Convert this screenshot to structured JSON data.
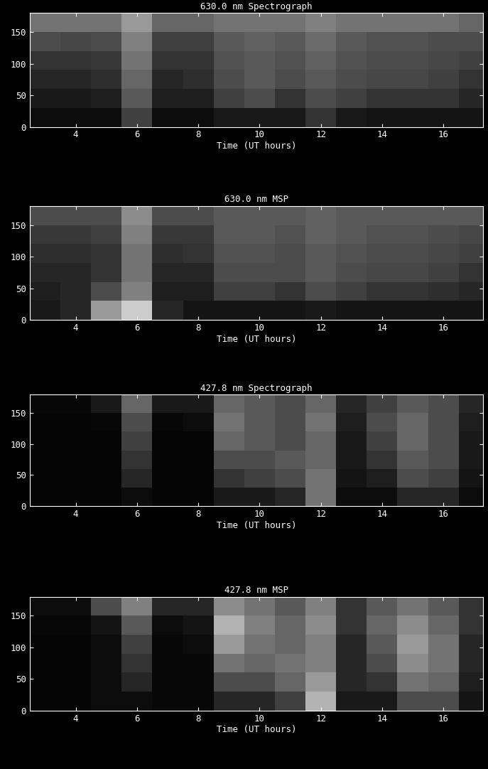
{
  "chart_data": [
    {
      "type": "heatmap",
      "title": "630.0 nm Spectrograph",
      "x_label": "Time (UT hours)",
      "color": "gray",
      "color_range": [
        0,
        1
      ],
      "x_bins": [
        2.5,
        3.5,
        4.5,
        5.5,
        6.5,
        7.5,
        8.5,
        9.5,
        10.5,
        11.5,
        12.5,
        13.5,
        14.5,
        15.5,
        16.5,
        17.5
      ],
      "y_bins": [
        0,
        30,
        60,
        90,
        120,
        150,
        180
      ],
      "values": [
        [
          0.05,
          0.05,
          0.05,
          0.25,
          0.05,
          0.05,
          0.1,
          0.1,
          0.1,
          0.2,
          0.1,
          0.08,
          0.08,
          0.08,
          0.08
        ],
        [
          0.1,
          0.1,
          0.12,
          0.35,
          0.12,
          0.12,
          0.25,
          0.3,
          0.2,
          0.3,
          0.25,
          0.2,
          0.2,
          0.2,
          0.15
        ],
        [
          0.15,
          0.15,
          0.18,
          0.4,
          0.15,
          0.18,
          0.3,
          0.35,
          0.3,
          0.35,
          0.3,
          0.28,
          0.28,
          0.25,
          0.2
        ],
        [
          0.2,
          0.2,
          0.22,
          0.45,
          0.2,
          0.2,
          0.32,
          0.35,
          0.32,
          0.38,
          0.32,
          0.3,
          0.3,
          0.28,
          0.25
        ],
        [
          0.3,
          0.28,
          0.3,
          0.5,
          0.25,
          0.25,
          0.35,
          0.38,
          0.35,
          0.42,
          0.35,
          0.32,
          0.32,
          0.3,
          0.3
        ],
        [
          0.45,
          0.45,
          0.45,
          0.6,
          0.4,
          0.4,
          0.45,
          0.45,
          0.45,
          0.5,
          0.45,
          0.45,
          0.45,
          0.45,
          0.4
        ]
      ],
      "xlim": [
        2.5,
        17.3
      ],
      "xticks": [
        4,
        6,
        8,
        10,
        12,
        14,
        16
      ],
      "ylim": [
        0,
        180
      ],
      "yticks": [
        0,
        50,
        100,
        150
      ]
    },
    {
      "type": "heatmap",
      "title": "630.0 nm MSP",
      "x_label": "Time (UT hours)",
      "color": "gray",
      "color_range": [
        0,
        1
      ],
      "x_bins": [
        2.5,
        3.5,
        4.5,
        5.5,
        6.5,
        7.5,
        8.5,
        9.5,
        10.5,
        11.5,
        12.5,
        13.5,
        14.5,
        15.5,
        16.5,
        17.5
      ],
      "y_bins": [
        0,
        30,
        60,
        90,
        120,
        150,
        180
      ],
      "values": [
        [
          0.1,
          0.15,
          0.6,
          0.8,
          0.15,
          0.08,
          0.08,
          0.08,
          0.08,
          0.1,
          0.08,
          0.08,
          0.08,
          0.08,
          0.08
        ],
        [
          0.12,
          0.15,
          0.3,
          0.5,
          0.12,
          0.12,
          0.25,
          0.25,
          0.2,
          0.3,
          0.25,
          0.2,
          0.2,
          0.18,
          0.15
        ],
        [
          0.15,
          0.15,
          0.2,
          0.45,
          0.15,
          0.15,
          0.3,
          0.3,
          0.3,
          0.35,
          0.3,
          0.28,
          0.28,
          0.25,
          0.2
        ],
        [
          0.18,
          0.18,
          0.2,
          0.45,
          0.18,
          0.2,
          0.32,
          0.32,
          0.3,
          0.35,
          0.32,
          0.3,
          0.3,
          0.28,
          0.25
        ],
        [
          0.22,
          0.22,
          0.25,
          0.5,
          0.22,
          0.22,
          0.35,
          0.35,
          0.32,
          0.38,
          0.35,
          0.32,
          0.32,
          0.3,
          0.28
        ],
        [
          0.3,
          0.3,
          0.3,
          0.55,
          0.3,
          0.3,
          0.35,
          0.35,
          0.35,
          0.38,
          0.35,
          0.35,
          0.35,
          0.35,
          0.35
        ]
      ],
      "xlim": [
        2.5,
        17.3
      ],
      "xticks": [
        4,
        6,
        8,
        10,
        12,
        14,
        16
      ],
      "ylim": [
        0,
        180
      ],
      "yticks": [
        0,
        50,
        100,
        150
      ]
    },
    {
      "type": "heatmap",
      "title": "427.8 nm Spectrograph",
      "x_label": "Time (UT hours)",
      "color": "gray",
      "color_range": [
        0,
        1
      ],
      "x_bins": [
        2.5,
        3.5,
        4.5,
        5.5,
        6.5,
        7.5,
        8.5,
        9.5,
        10.5,
        11.5,
        12.5,
        13.5,
        14.5,
        15.5,
        16.5,
        17.5
      ],
      "y_bins": [
        0,
        30,
        60,
        90,
        120,
        150,
        180
      ],
      "values": [
        [
          0.02,
          0.02,
          0.02,
          0.05,
          0.02,
          0.02,
          0.1,
          0.1,
          0.15,
          0.45,
          0.05,
          0.05,
          0.15,
          0.15,
          0.05
        ],
        [
          0.02,
          0.02,
          0.02,
          0.15,
          0.02,
          0.02,
          0.2,
          0.25,
          0.3,
          0.45,
          0.08,
          0.12,
          0.3,
          0.25,
          0.08
        ],
        [
          0.02,
          0.02,
          0.02,
          0.2,
          0.02,
          0.02,
          0.3,
          0.3,
          0.35,
          0.4,
          0.1,
          0.2,
          0.35,
          0.3,
          0.1
        ],
        [
          0.02,
          0.02,
          0.02,
          0.25,
          0.02,
          0.02,
          0.4,
          0.35,
          0.3,
          0.4,
          0.1,
          0.25,
          0.4,
          0.3,
          0.1
        ],
        [
          0.02,
          0.02,
          0.03,
          0.3,
          0.03,
          0.05,
          0.45,
          0.35,
          0.3,
          0.45,
          0.12,
          0.3,
          0.4,
          0.3,
          0.12
        ],
        [
          0.03,
          0.03,
          0.1,
          0.4,
          0.1,
          0.1,
          0.4,
          0.35,
          0.3,
          0.4,
          0.15,
          0.25,
          0.35,
          0.3,
          0.15
        ]
      ],
      "xlim": [
        2.5,
        17.3
      ],
      "xticks": [
        4,
        6,
        8,
        10,
        12,
        14,
        16
      ],
      "ylim": [
        0,
        180
      ],
      "yticks": [
        0,
        50,
        100,
        150
      ]
    },
    {
      "type": "heatmap",
      "title": "427.8 nm MSP",
      "x_label": "Time (UT hours)",
      "color": "gray",
      "color_range": [
        0,
        1
      ],
      "x_bins": [
        2.5,
        3.5,
        4.5,
        5.5,
        6.5,
        7.5,
        8.5,
        9.5,
        10.5,
        11.5,
        12.5,
        13.5,
        14.5,
        15.5,
        16.5,
        17.5
      ],
      "y_bins": [
        0,
        30,
        60,
        90,
        120,
        150,
        180
      ],
      "values": [
        [
          0.02,
          0.02,
          0.05,
          0.05,
          0.03,
          0.03,
          0.15,
          0.15,
          0.25,
          0.7,
          0.1,
          0.1,
          0.3,
          0.3,
          0.08
        ],
        [
          0.02,
          0.02,
          0.05,
          0.15,
          0.03,
          0.03,
          0.3,
          0.3,
          0.4,
          0.6,
          0.15,
          0.2,
          0.45,
          0.4,
          0.12
        ],
        [
          0.02,
          0.02,
          0.05,
          0.2,
          0.03,
          0.03,
          0.45,
          0.4,
          0.45,
          0.5,
          0.15,
          0.3,
          0.55,
          0.45,
          0.15
        ],
        [
          0.02,
          0.02,
          0.05,
          0.25,
          0.03,
          0.05,
          0.6,
          0.45,
          0.4,
          0.5,
          0.15,
          0.35,
          0.6,
          0.45,
          0.15
        ],
        [
          0.03,
          0.03,
          0.08,
          0.35,
          0.05,
          0.08,
          0.7,
          0.5,
          0.4,
          0.55,
          0.2,
          0.4,
          0.55,
          0.4,
          0.2
        ],
        [
          0.05,
          0.05,
          0.3,
          0.5,
          0.15,
          0.15,
          0.55,
          0.45,
          0.35,
          0.5,
          0.2,
          0.35,
          0.45,
          0.35,
          0.2
        ]
      ],
      "xlim": [
        2.5,
        17.3
      ],
      "xticks": [
        4,
        6,
        8,
        10,
        12,
        14,
        16
      ],
      "ylim": [
        0,
        180
      ],
      "yticks": [
        0,
        50,
        100,
        150
      ]
    }
  ]
}
